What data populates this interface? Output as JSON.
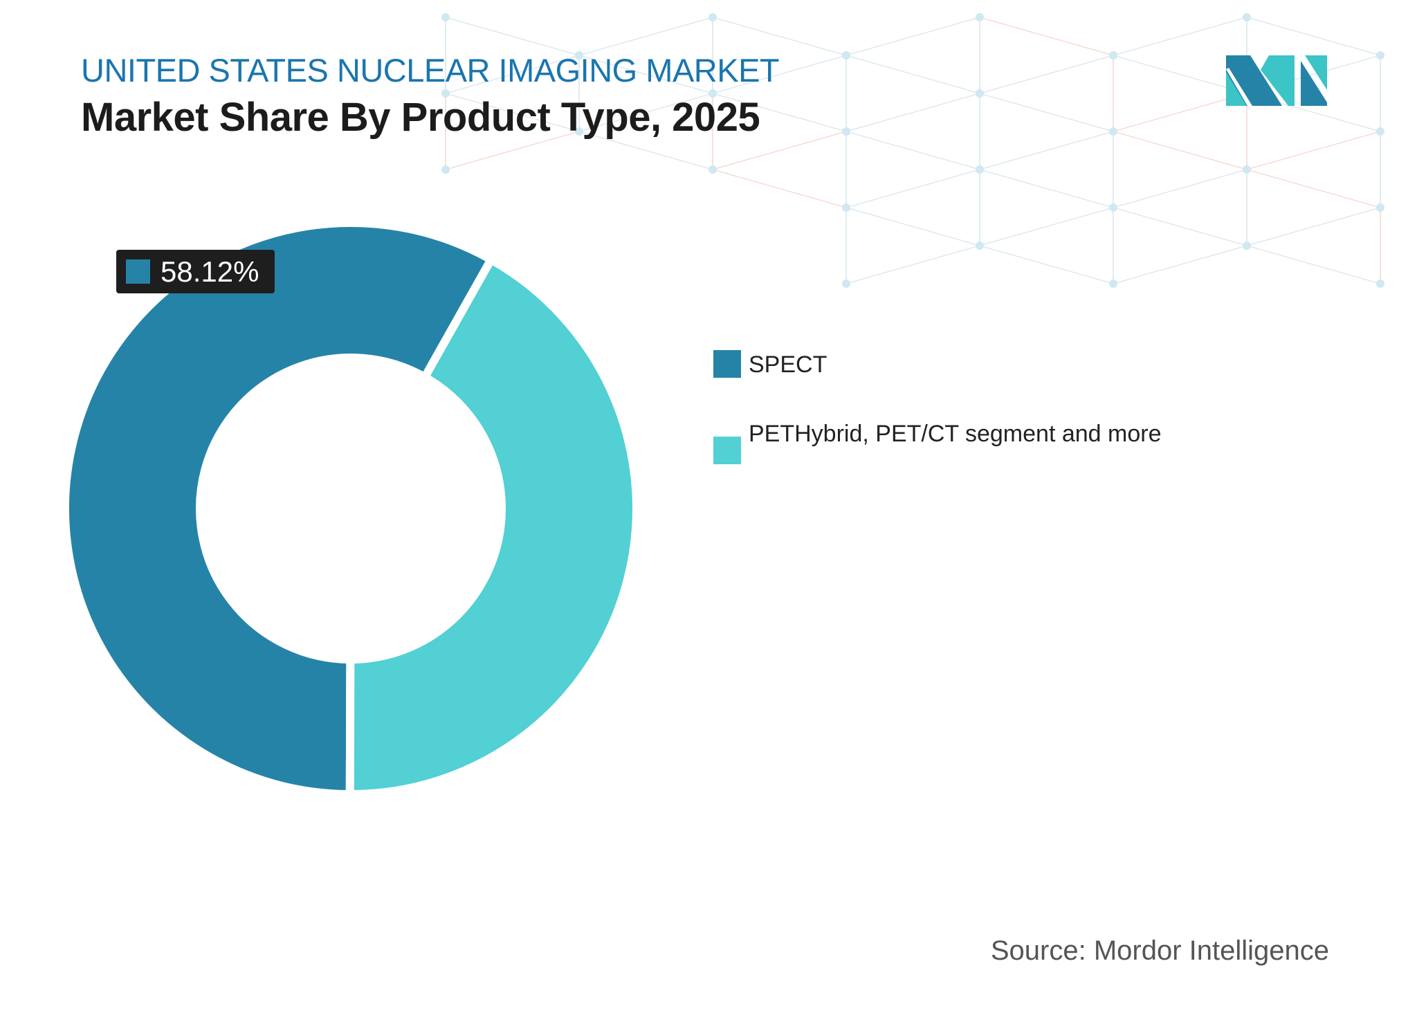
{
  "header": {
    "subtitle": "UNITED STATES NUCLEAR IMAGING MARKET",
    "title": "Market Share By Product Type, 2025"
  },
  "chart_data": {
    "type": "pie",
    "variant": "donut",
    "title": "Market Share By Product Type, 2025",
    "categories": [
      "SPECT",
      "PETHybrid, PET/CT segment and more"
    ],
    "values": [
      58.12,
      41.88
    ],
    "colors": [
      "#2683a8",
      "#52d0d3"
    ],
    "data_labels": [
      "58.12%"
    ],
    "legend_position": "right"
  },
  "label": {
    "text": "58.12%"
  },
  "legend": [
    {
      "label": "SPECT",
      "color": "#2683a8"
    },
    {
      "label": "PETHybrid, PET/CT segment and more",
      "color": "#52d0d3"
    }
  ],
  "source": "Source: Mordor Intelligence",
  "logo": {
    "text": "Mordor Intelligence"
  }
}
